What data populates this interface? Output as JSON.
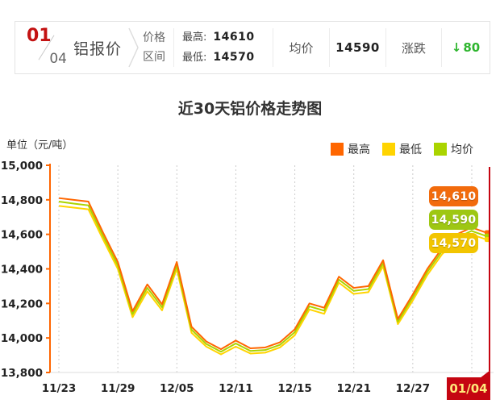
{
  "header": {
    "date_top": "01",
    "date_bottom": "04",
    "product": "铝报价",
    "range_line1": "价格",
    "range_line2": "区间",
    "high_label": "最高:",
    "high_value": "14610",
    "low_label": "最低:",
    "low_value": "14570",
    "avg_label": "均价",
    "avg_value": "14590",
    "change_label": "涨跌",
    "change_arrow": "↓",
    "change_value": "80",
    "change_color": "#2eb52e"
  },
  "title": "近30天铝价格走势图",
  "chart_data": {
    "type": "line",
    "title": "近30天铝价格走势图",
    "ylabel": "单位（元/吨）",
    "ylim": [
      13800,
      15000
    ],
    "yticks": [
      15000,
      14800,
      14600,
      14400,
      14200,
      14000,
      13800
    ],
    "y_tick_labels": [
      "15,000",
      "14,800",
      "14,600",
      "14,400",
      "14,200",
      "14,000",
      "13,800"
    ],
    "x_labels": [
      "11/23",
      "11/29",
      "12/05",
      "12/11",
      "12/15",
      "12/21",
      "12/27",
      "01/04"
    ],
    "grid": "vertical-dashed",
    "legend_position": "top-right",
    "axis_color": "#ff6600",
    "current_line_color": "#c50511",
    "series": [
      {
        "name": "最高",
        "color": "#ff6600",
        "values": [
          14810,
          14800,
          14790,
          14610,
          14440,
          14155,
          14310,
          14195,
          14440,
          14065,
          13980,
          13935,
          13985,
          13940,
          13945,
          13975,
          14050,
          14200,
          14175,
          14355,
          14290,
          14300,
          14450,
          14110,
          14250,
          14400,
          14520,
          14600,
          14640,
          14610
        ]
      },
      {
        "name": "最低",
        "color": "#ffd400",
        "values": [
          14765,
          14755,
          14745,
          14570,
          14400,
          14120,
          14270,
          14160,
          14400,
          14030,
          13950,
          13905,
          13950,
          13910,
          13915,
          13945,
          14015,
          14165,
          14140,
          14320,
          14255,
          14265,
          14415,
          14080,
          14215,
          14365,
          14485,
          14560,
          14600,
          14570
        ]
      },
      {
        "name": "均价",
        "color": "#aad400",
        "values": [
          14790,
          14778,
          14768,
          14590,
          14420,
          14138,
          14290,
          14178,
          14420,
          14048,
          13965,
          13920,
          13968,
          13925,
          13930,
          13960,
          14033,
          14183,
          14158,
          14338,
          14273,
          14283,
          14433,
          14095,
          14233,
          14383,
          14503,
          14580,
          14620,
          14590
        ]
      }
    ],
    "price_flags": {
      "high": "14,610",
      "avg": "14,590",
      "low": "14,570"
    },
    "flag_colors": {
      "high": "#f26b0c",
      "avg": "#9ec713",
      "low": "#f2c500"
    }
  }
}
